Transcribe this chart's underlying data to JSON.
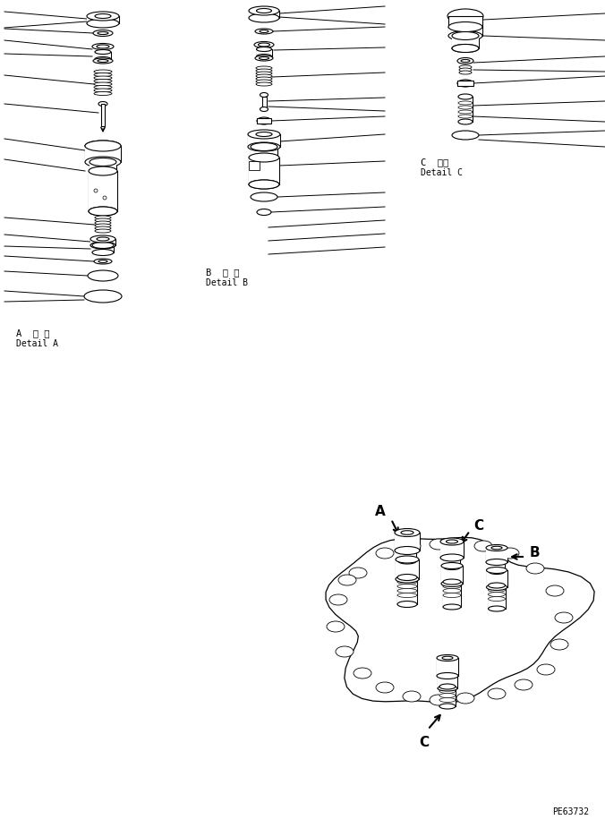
{
  "bg_color": "#ffffff",
  "fig_width": 6.76,
  "fig_height": 9.25,
  "label_A_jp": "A  詳 細",
  "label_A_en": "Detail A",
  "label_B_jp": "B  詳 細",
  "label_B_en": "Detail B",
  "label_C_jp": "C  詳細",
  "label_C_en": "Detail C",
  "watermark": "PE63732"
}
